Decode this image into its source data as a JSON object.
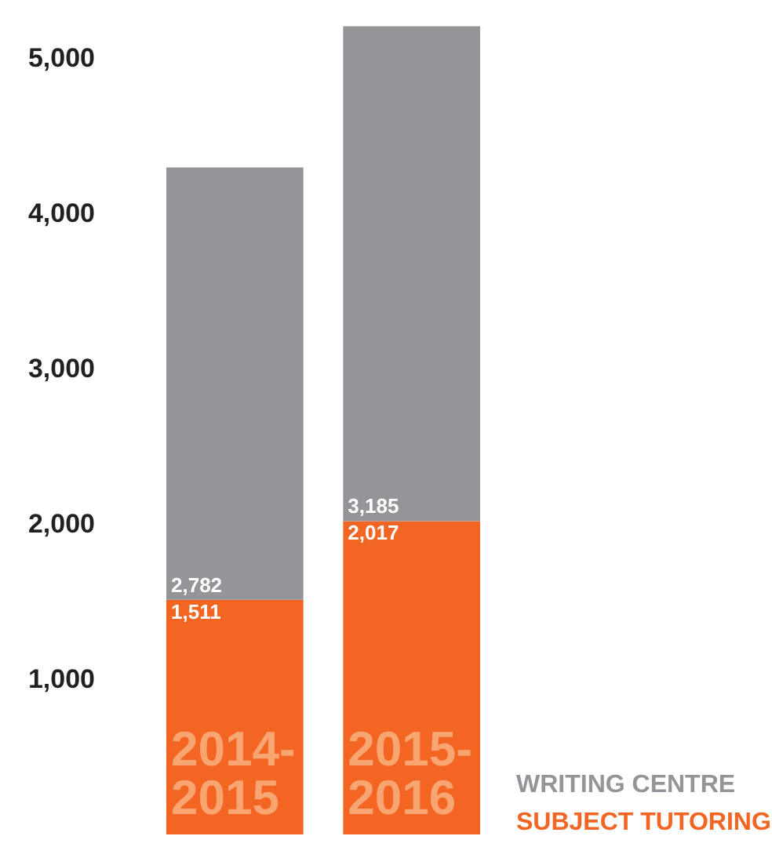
{
  "chart_data": {
    "type": "bar",
    "stacked": true,
    "categories": [
      "2014-2015",
      "2015-2016"
    ],
    "series": [
      {
        "name": "SUBJECT TUTORING",
        "color": "#f26522",
        "values": [
          1511,
          2017
        ],
        "value_labels": [
          "1,511",
          "2,017"
        ]
      },
      {
        "name": "WRITING CENTRE",
        "color": "#939598",
        "values": [
          2782,
          3185
        ],
        "value_labels": [
          "2,782",
          "3,185"
        ]
      }
    ],
    "ylim": [
      0,
      5250
    ],
    "yticks": [
      {
        "value": 1000,
        "label": "1,000"
      },
      {
        "value": 2000,
        "label": "2,000"
      },
      {
        "value": 3000,
        "label": "3,000"
      },
      {
        "value": 4000,
        "label": "4,000"
      },
      {
        "value": 5000,
        "label": "5,000"
      }
    ],
    "grid": false,
    "legend": "bottom right"
  }
}
